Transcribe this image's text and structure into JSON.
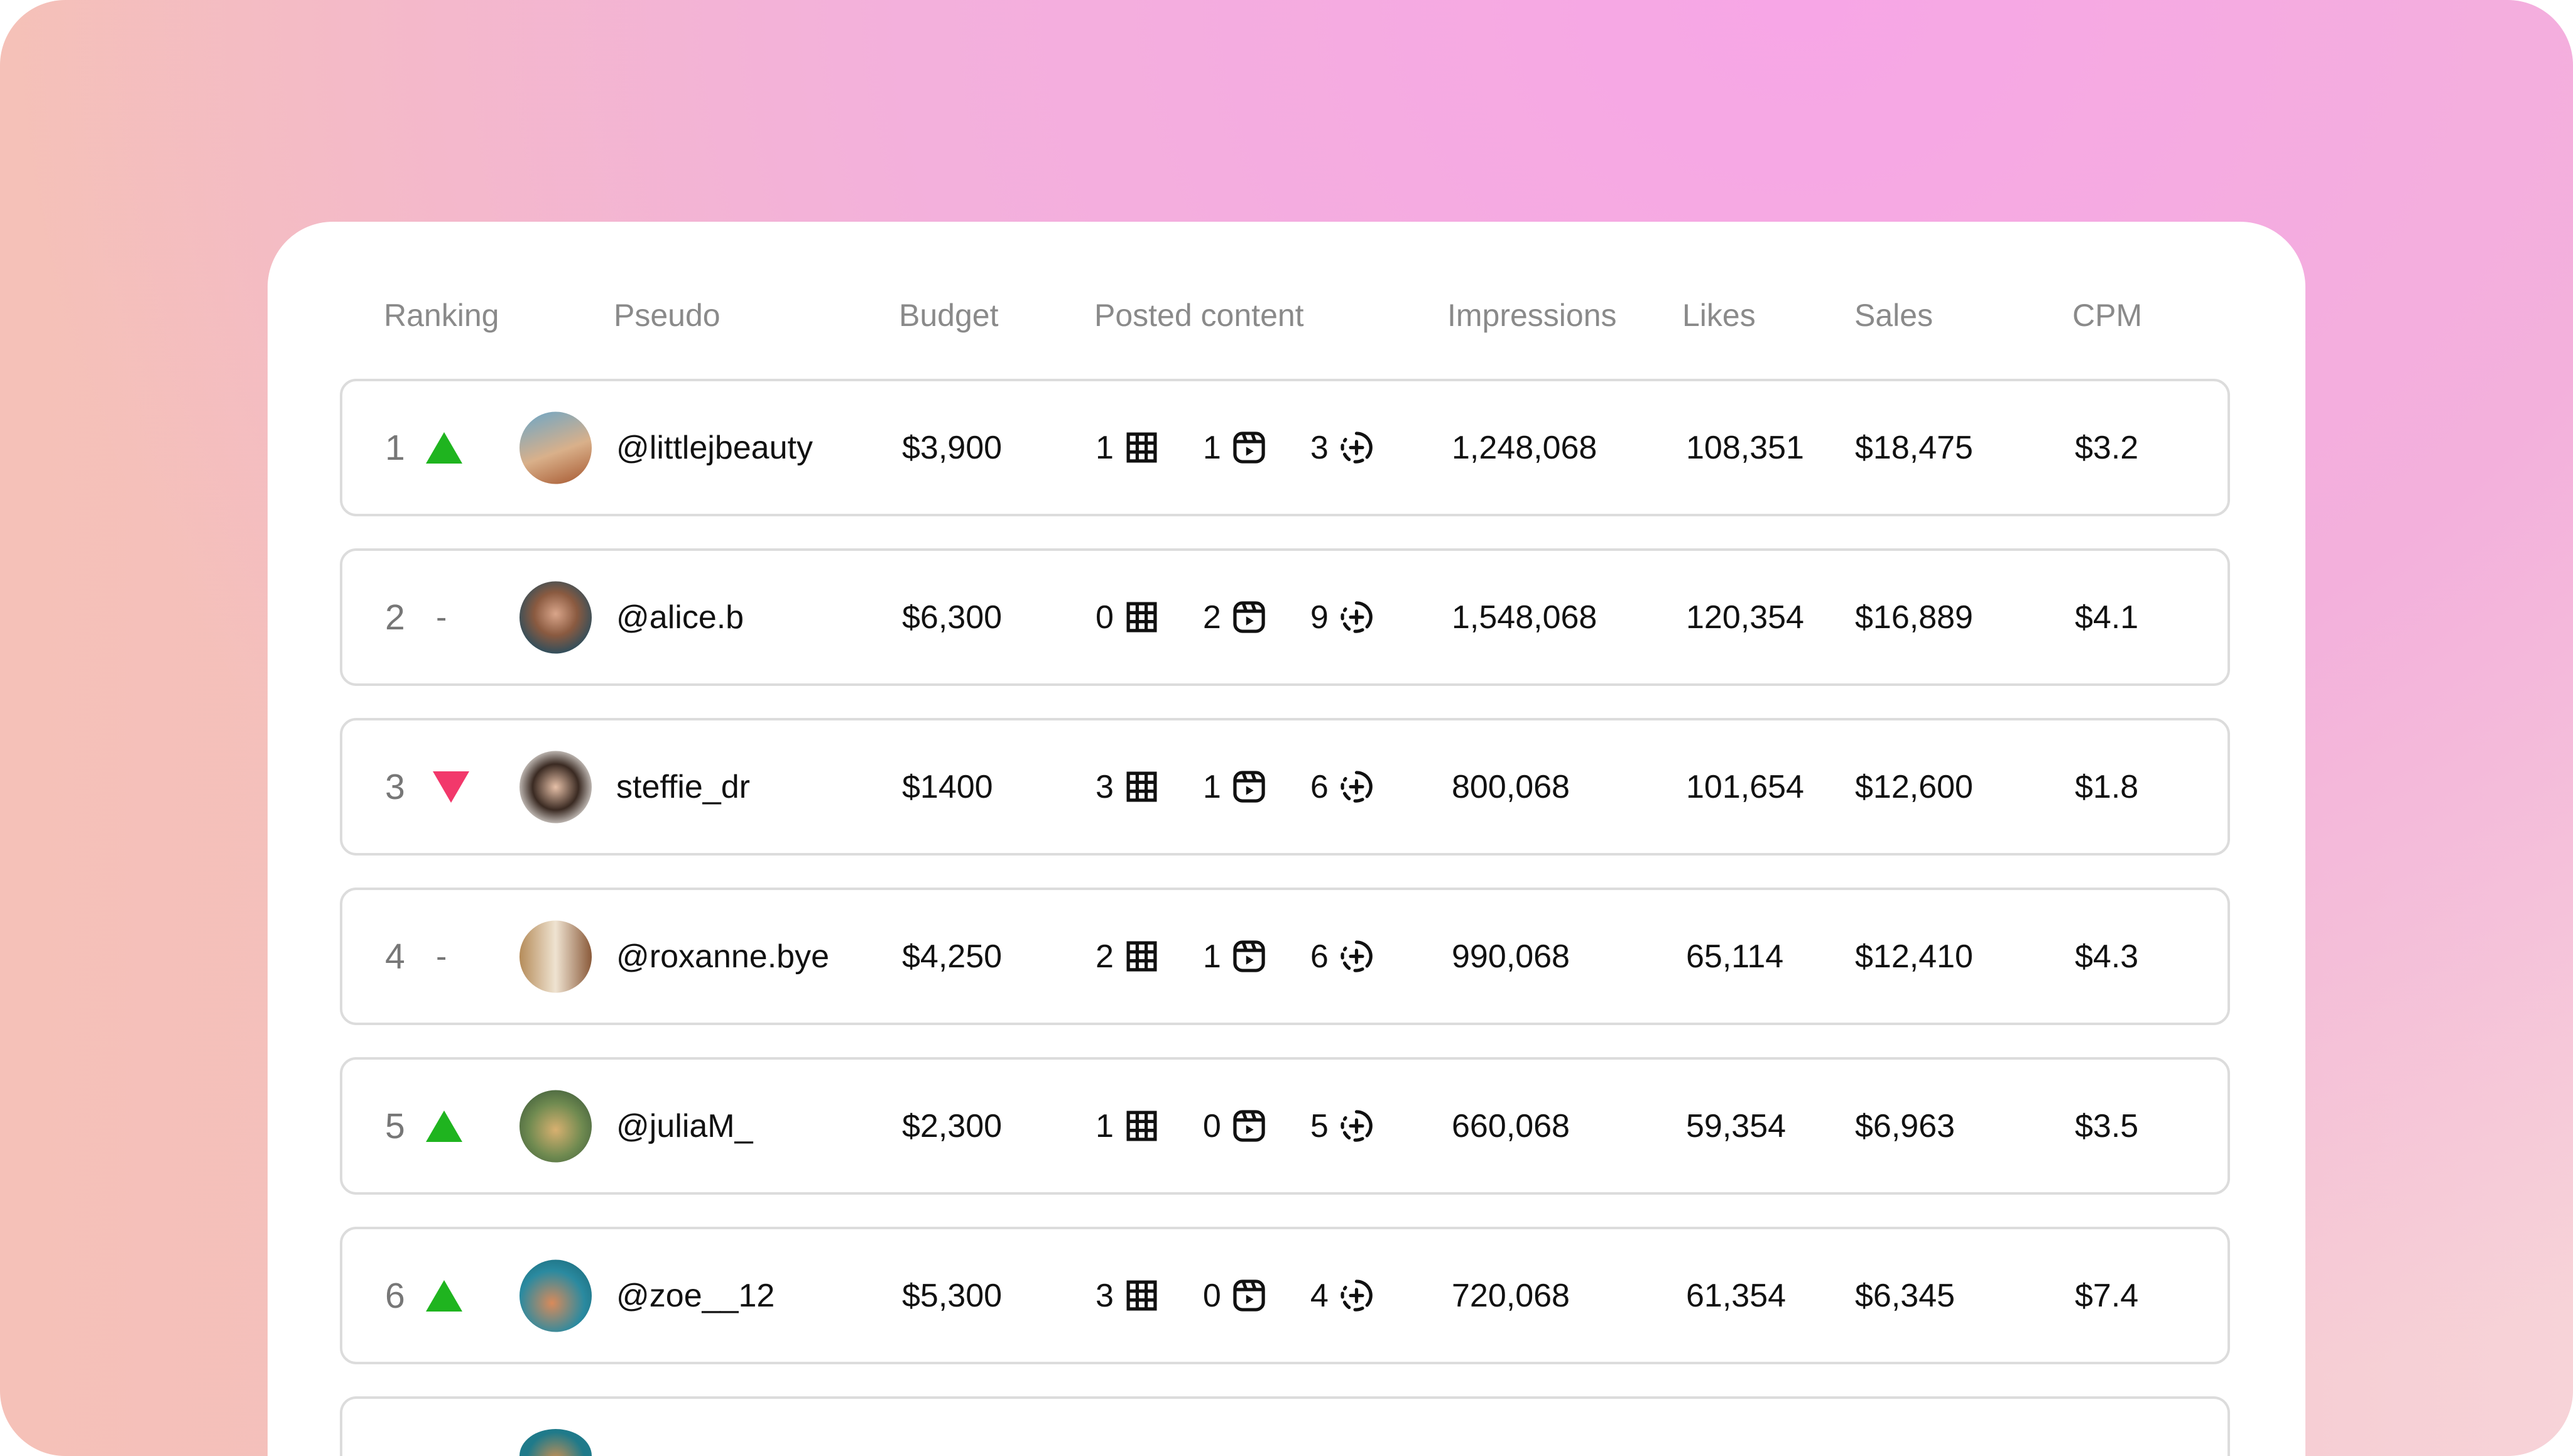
{
  "headers": [
    "Ranking",
    "Pseudo",
    "Budget",
    "Posted content",
    "Impressions",
    "Likes",
    "Sales",
    "CPM"
  ],
  "colors": {
    "up": "#1fb41f",
    "down": "#f2386b"
  },
  "icons": {
    "posts": "grid-icon",
    "reels": "reel-icon",
    "stories": "story-add-icon"
  },
  "rows": [
    {
      "rank": "1",
      "trend": "up",
      "pseudo": "@littlejbeauty",
      "budget": "$3,900",
      "posts": "1",
      "reels": "1",
      "stories": "3",
      "impressions": "1,248,068",
      "likes": "108,351",
      "sales": "$18,475",
      "cpm": "$3.2"
    },
    {
      "rank": "2",
      "trend": "same",
      "trend_label": "-",
      "pseudo": "@alice.b",
      "budget": "$6,300",
      "posts": "0",
      "reels": "2",
      "stories": "9",
      "impressions": "1,548,068",
      "likes": "120,354",
      "sales": "$16,889",
      "cpm": "$4.1"
    },
    {
      "rank": "3",
      "trend": "down",
      "pseudo": "steffie_dr",
      "budget": "$1400",
      "posts": "3",
      "reels": "1",
      "stories": "6",
      "impressions": "800,068",
      "likes": "101,654",
      "sales": "$12,600",
      "cpm": "$1.8"
    },
    {
      "rank": "4",
      "trend": "same",
      "trend_label": "-",
      "pseudo": "@roxanne.bye",
      "budget": "$4,250",
      "posts": "2",
      "reels": "1",
      "stories": "6",
      "impressions": "990,068",
      "likes": "65,114",
      "sales": "$12,410",
      "cpm": "$4.3"
    },
    {
      "rank": "5",
      "trend": "up",
      "pseudo": "@juliaM_",
      "budget": "$2,300",
      "posts": "1",
      "reels": "0",
      "stories": "5",
      "impressions": "660,068",
      "likes": "59,354",
      "sales": "$6,963",
      "cpm": "$3.5"
    },
    {
      "rank": "6",
      "trend": "up",
      "pseudo": "@zoe__12",
      "budget": "$5,300",
      "posts": "3",
      "reels": "0",
      "stories": "4",
      "impressions": "720,068",
      "likes": "61,354",
      "sales": "$6,345",
      "cpm": "$7.4"
    }
  ]
}
